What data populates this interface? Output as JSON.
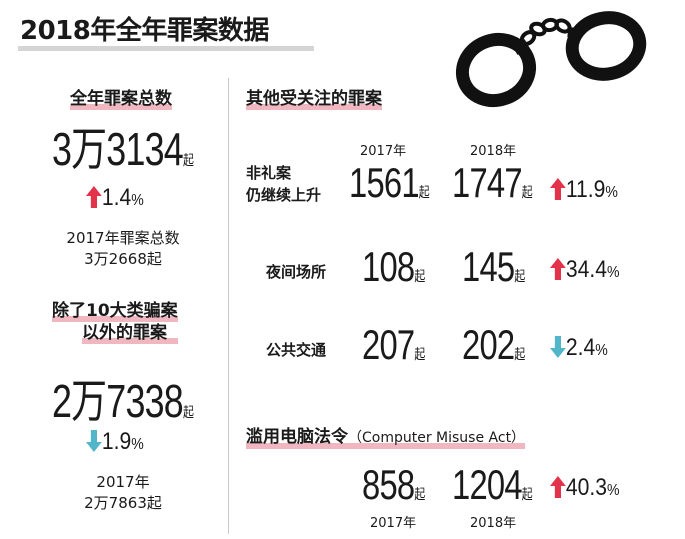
{
  "title": "2018年全年罪案数据",
  "left": {
    "total": {
      "heading": "全年罪案总数",
      "value_a": "3万",
      "value_b": "3134",
      "unit": "起",
      "change_pct": "1.4",
      "pct_symbol": "%",
      "direction": "up",
      "prev_label": "2017年罪案总数",
      "prev_value": "3万2668起"
    },
    "excl": {
      "heading_line1": "除了10大类骗案",
      "heading_line2": "以外的罪案",
      "value_a": "2万",
      "value_b": "7338",
      "unit": "起",
      "change_pct": "1.9",
      "pct_symbol": "%",
      "direction": "down",
      "prev_label": "2017年",
      "prev_value": "2万7863起"
    }
  },
  "right": {
    "heading": "其他受关注的罪案",
    "year_2017": "2017年",
    "year_2018": "2018年",
    "unit": "起",
    "pct_symbol": "%",
    "rows": [
      {
        "label_line1": "非礼案",
        "label_line2": "仍继续上升",
        "v2017": "1561",
        "v2018": "1747",
        "change": "11.9",
        "direction": "up"
      },
      {
        "label_line1": "夜间场所",
        "v2017": "108",
        "v2018": "145",
        "change": "34.4",
        "direction": "up"
      },
      {
        "label_line1": "公共交通",
        "v2017": "207",
        "v2018": "202",
        "change": "2.4",
        "direction": "down"
      }
    ],
    "misuse": {
      "heading": "滥用电脑法令",
      "heading_en": "（Computer Misuse Act）",
      "v2017": "858",
      "v2018": "1204",
      "change": "40.3",
      "direction": "up",
      "year_2017": "2017年",
      "year_2018": "2018年"
    }
  },
  "colors": {
    "up": "#e2334a",
    "down": "#52b6c9",
    "highlight": "#f0b7c0"
  }
}
